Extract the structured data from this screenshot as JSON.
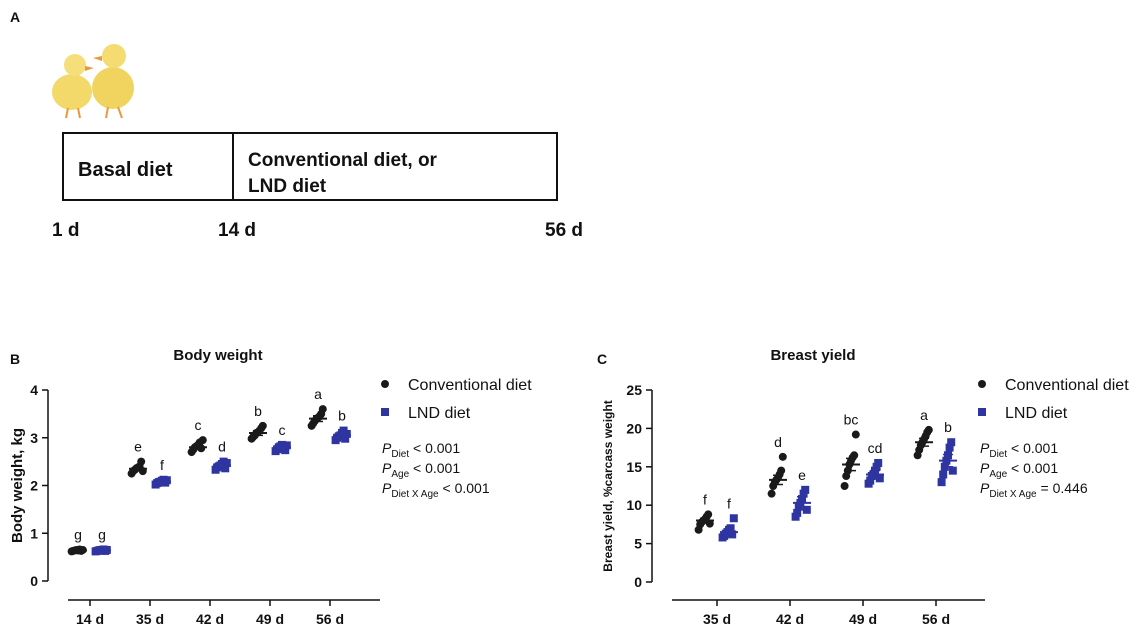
{
  "diagram": {
    "panel": "A",
    "boxes": [
      "Basal diet",
      "Conventional diet, or",
      "LND diet"
    ],
    "days": [
      "1 d",
      "14 d",
      "56 d"
    ]
  },
  "chart_data": [
    {
      "type": "dot",
      "panel": "B",
      "title": "Body weight",
      "ylabel": "Body weight, kg",
      "categories": [
        "14 d",
        "35 d",
        "42 d",
        "49 d",
        "56 d"
      ],
      "ylim": [
        0,
        4
      ],
      "yticks": [
        0,
        1,
        2,
        3,
        4
      ],
      "series": [
        {
          "name": "Conventional diet",
          "color": "#1a1a1a",
          "marker": "circle",
          "values": [
            0.64,
            2.35,
            2.8,
            3.1,
            3.4
          ],
          "errors": [
            0.01,
            0.04,
            0.04,
            0.05,
            0.06
          ],
          "labels": [
            "g",
            "e",
            "c",
            "b",
            "a"
          ],
          "points": [
            [
              0.62,
              0.63,
              0.64,
              0.65,
              0.64,
              0.66,
              0.63,
              0.65
            ],
            [
              2.25,
              2.3,
              2.33,
              2.36,
              2.38,
              2.4,
              2.5,
              2.3
            ],
            [
              2.7,
              2.75,
              2.8,
              2.82,
              2.85,
              2.9,
              2.78,
              2.95
            ],
            [
              2.98,
              3.02,
              3.05,
              3.1,
              3.12,
              3.15,
              3.2,
              3.25
            ],
            [
              3.25,
              3.3,
              3.35,
              3.4,
              3.42,
              3.45,
              3.5,
              3.6
            ]
          ]
        },
        {
          "name": "LND diet",
          "color": "#2e35a0",
          "marker": "square",
          "values": [
            0.64,
            2.08,
            2.42,
            2.8,
            3.05
          ],
          "errors": [
            0.01,
            0.03,
            0.04,
            0.03,
            0.04
          ],
          "labels": [
            "g",
            "f",
            "d",
            "c",
            "b"
          ],
          "points": [
            [
              0.62,
              0.63,
              0.64,
              0.65,
              0.64,
              0.66,
              0.63,
              0.65
            ],
            [
              2.02,
              2.05,
              2.07,
              2.08,
              2.1,
              2.12,
              2.06,
              2.11
            ],
            [
              2.33,
              2.38,
              2.4,
              2.42,
              2.45,
              2.5,
              2.36,
              2.47
            ],
            [
              2.72,
              2.76,
              2.8,
              2.82,
              2.85,
              2.78,
              2.74,
              2.84
            ],
            [
              2.95,
              3.0,
              3.03,
              3.05,
              3.1,
              3.15,
              2.98,
              3.08
            ]
          ]
        }
      ],
      "annotations": [
        {
          "symbol": "P",
          "subscript": "Diet",
          "text": " < 0.001"
        },
        {
          "symbol": "P",
          "subscript": "Age",
          "text": " < 0.001"
        },
        {
          "symbol": "P",
          "subscript": "Diet X Age",
          "text": " < 0.001"
        }
      ]
    },
    {
      "type": "dot",
      "panel": "C",
      "title": "Breast yield",
      "ylabel": "Breast yield, %carcass weight",
      "categories": [
        "35 d",
        "42 d",
        "49 d",
        "56 d"
      ],
      "ylim": [
        0,
        25
      ],
      "yticks": [
        0,
        5,
        10,
        15,
        20,
        25
      ],
      "series": [
        {
          "name": "Conventional diet",
          "color": "#1a1a1a",
          "marker": "circle",
          "values": [
            8.0,
            13.3,
            15.3,
            18.2
          ],
          "errors": [
            0.3,
            0.6,
            0.8,
            0.5
          ],
          "labels": [
            "f",
            "d",
            "bc",
            "a"
          ],
          "points": [
            [
              6.8,
              7.5,
              7.8,
              8.0,
              8.2,
              8.5,
              8.8,
              7.6
            ],
            [
              11.5,
              12.5,
              13.0,
              13.3,
              13.6,
              14.0,
              14.5,
              16.3
            ],
            [
              12.5,
              13.8,
              14.5,
              15.3,
              15.8,
              16.2,
              16.5,
              19.2
            ],
            [
              16.5,
              17.2,
              17.8,
              18.2,
              18.6,
              19.0,
              19.5,
              19.8
            ]
          ]
        },
        {
          "name": "LND diet",
          "color": "#2e35a0",
          "marker": "square",
          "values": [
            6.5,
            10.3,
            14.0,
            15.8
          ],
          "errors": [
            0.3,
            0.8,
            0.5,
            0.8
          ],
          "labels": [
            "f",
            "e",
            "cd",
            "b"
          ],
          "points": [
            [
              5.8,
              6.0,
              6.3,
              6.5,
              6.8,
              7.0,
              6.2,
              8.3
            ],
            [
              8.5,
              9.0,
              9.8,
              10.3,
              10.8,
              11.5,
              12.0,
              9.4
            ],
            [
              12.8,
              13.2,
              13.8,
              14.0,
              14.5,
              15.0,
              15.5,
              13.5
            ],
            [
              13.0,
              14.0,
              15.0,
              15.8,
              16.5,
              17.5,
              18.2,
              14.5
            ]
          ]
        }
      ],
      "annotations": [
        {
          "symbol": "P",
          "subscript": "Diet",
          "text": " < 0.001"
        },
        {
          "symbol": "P",
          "subscript": "Age",
          "text": " < 0.001"
        },
        {
          "symbol": "P",
          "subscript": "Diet X Age",
          "text": " = 0.446"
        }
      ]
    }
  ]
}
